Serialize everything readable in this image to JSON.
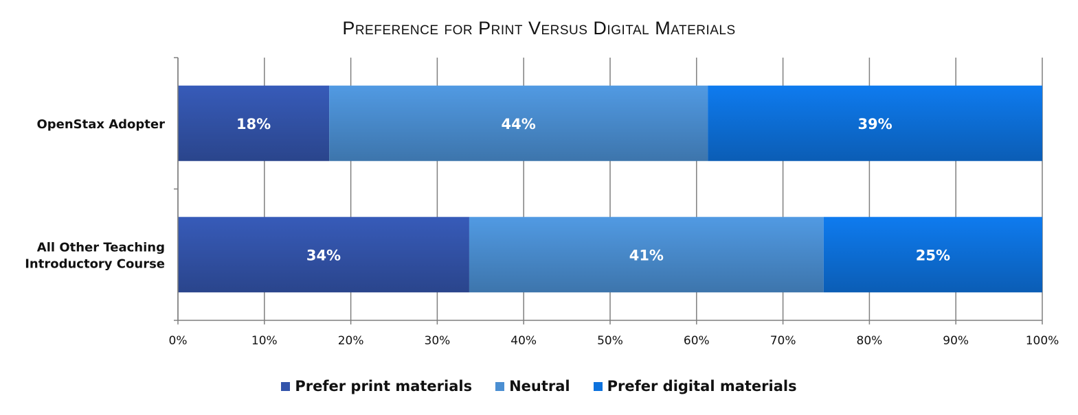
{
  "chart_data": {
    "type": "bar",
    "orientation": "horizontal",
    "stacked": true,
    "title": "Preference for Print Versus Digital Materials",
    "categories": [
      "OpenStax Adopter",
      "All Other Teaching Introductory Course"
    ],
    "category_lines": [
      [
        "OpenStax Adopter"
      ],
      [
        "All Other Teaching",
        "Introductory Course"
      ]
    ],
    "series": [
      {
        "name": "Prefer print materials",
        "values": [
          17.5,
          33.7
        ],
        "labels": [
          "18%",
          "34%"
        ],
        "color": "#3354ab"
      },
      {
        "name": "Neutral",
        "values": [
          43.8,
          41.0
        ],
        "labels": [
          "44%",
          "41%"
        ],
        "color": "#4b8fd2"
      },
      {
        "name": "Prefer digital materials",
        "values": [
          38.7,
          25.3
        ],
        "labels": [
          "39%",
          "25%"
        ],
        "color": "#0d72dd"
      }
    ],
    "xlim": [
      0,
      100
    ],
    "xticks": [
      "0%",
      "10%",
      "20%",
      "30%",
      "40%",
      "50%",
      "60%",
      "70%",
      "80%",
      "90%",
      "100%"
    ],
    "grid": true,
    "legend_position": "bottom"
  }
}
